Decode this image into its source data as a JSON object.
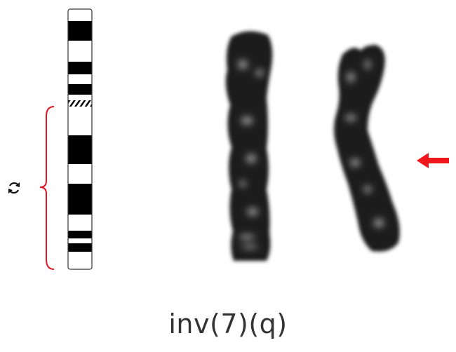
{
  "caption": "inv(7)(q)",
  "ideogram": {
    "bands": [
      "white",
      "black",
      "white",
      "black",
      "white",
      "black",
      "white",
      "hatched",
      "white",
      "black",
      "white",
      "black",
      "white",
      "black",
      "white",
      "black",
      "white"
    ]
  },
  "inversion_symbol_icon": "cycle-arrows-icon",
  "arrow_icon": "arrow-left-icon",
  "colors": {
    "bracket": "#e0141f",
    "arrow": "#f0161c",
    "band_dark": "#000000",
    "chromosome": "#1e1e1e",
    "caption": "#333333"
  }
}
